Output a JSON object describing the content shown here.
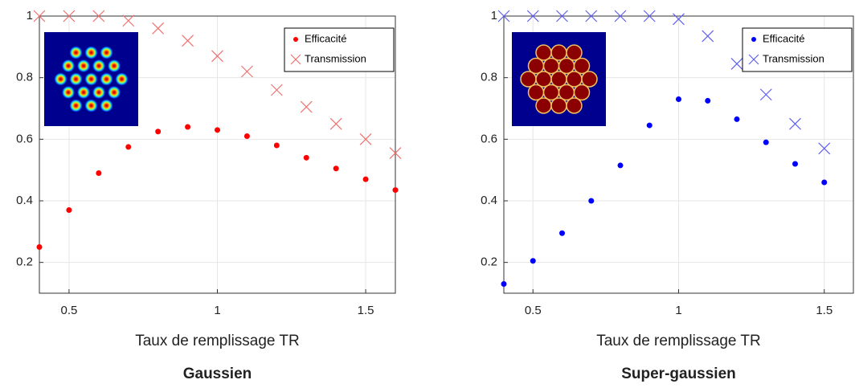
{
  "chart_data": [
    {
      "type": "scatter",
      "title": "Gaussien",
      "xlabel": "Taux de remplissage TR",
      "x": [
        0.4,
        0.5,
        0.6,
        0.7,
        0.8,
        0.9,
        1.0,
        1.1,
        1.2,
        1.3,
        1.4,
        1.5,
        1.6
      ],
      "series": [
        {
          "name": "Efficacité",
          "color": "#ff0000",
          "marker": "dot",
          "values": [
            0.25,
            0.37,
            0.49,
            0.575,
            0.625,
            0.64,
            0.63,
            0.61,
            0.58,
            0.54,
            0.505,
            0.47,
            0.435
          ]
        },
        {
          "name": "Transmission",
          "color": "#f07070",
          "marker": "cross",
          "values": [
            1,
            1,
            1,
            0.985,
            0.96,
            0.92,
            0.87,
            0.82,
            0.76,
            0.705,
            0.65,
            0.6,
            0.555
          ]
        }
      ],
      "xlim": [
        0.4,
        1.6
      ],
      "ylim": [
        0.1,
        1
      ],
      "xticks": [
        0.5,
        1,
        1.5
      ],
      "yticks": [
        0.2,
        0.4,
        0.6,
        0.8,
        1
      ],
      "grid": true,
      "legend": "top-right"
    },
    {
      "type": "scatter",
      "title": "Super-gaussien",
      "xlabel": "Taux de remplissage TR",
      "x": [
        0.4,
        0.5,
        0.6,
        0.7,
        0.8,
        0.9,
        1.0,
        1.1,
        1.2,
        1.3,
        1.4,
        1.5
      ],
      "series": [
        {
          "name": "Efficacité",
          "color": "#0000ff",
          "marker": "dot",
          "values": [
            0.13,
            0.205,
            0.295,
            0.4,
            0.515,
            0.645,
            0.73,
            0.725,
            0.665,
            0.59,
            0.52,
            0.46
          ]
        },
        {
          "name": "Transmission",
          "color": "#6060f0",
          "marker": "cross",
          "values": [
            1,
            1,
            1,
            1,
            1,
            1,
            0.99,
            0.935,
            0.845,
            0.745,
            0.65,
            0.57
          ]
        }
      ],
      "xlim": [
        0.4,
        1.6
      ],
      "ylim": [
        0.1,
        1
      ],
      "xticks": [
        0.5,
        1,
        1.5
      ],
      "yticks": [
        0.2,
        0.4,
        0.6,
        0.8,
        1
      ],
      "grid": true,
      "legend": "top-right"
    }
  ]
}
